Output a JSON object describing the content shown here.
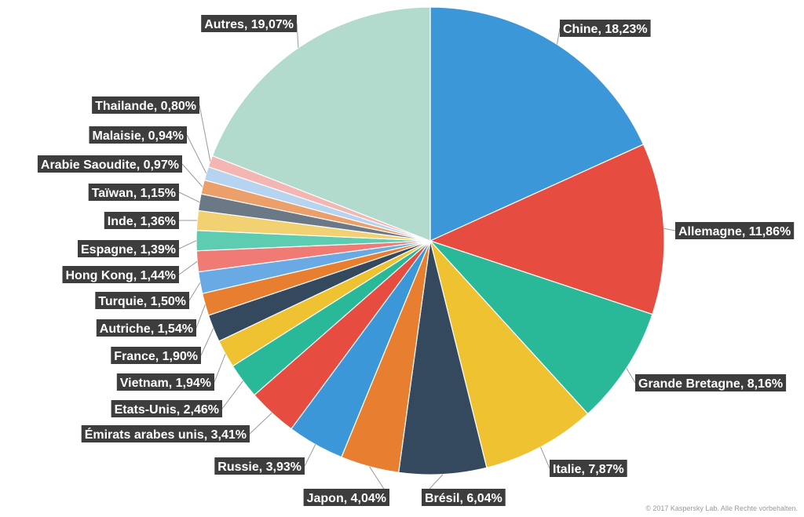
{
  "chart_data": {
    "type": "pie",
    "title": "",
    "start_angle_deg": 0,
    "direction": "clockwise",
    "slices": [
      {
        "label": "Chine, 18,23%",
        "value": 18.23,
        "color": "#3b97d8"
      },
      {
        "label": "Allemagne, 11,86%",
        "value": 11.86,
        "color": "#e64c3f"
      },
      {
        "label": "Grande Bretagne, 8,16%",
        "value": 8.16,
        "color": "#2ab998"
      },
      {
        "label": "Italie, 7,87%",
        "value": 7.87,
        "color": "#efc232"
      },
      {
        "label": "Brésil, 6,04%",
        "value": 6.04,
        "color": "#34495e"
      },
      {
        "label": "Japon, 4,04%",
        "value": 4.04,
        "color": "#e77e30"
      },
      {
        "label": "Russie, 3,93%",
        "value": 3.93,
        "color": "#3b97d8"
      },
      {
        "label": "Émirats arabes unis, 3,41%",
        "value": 3.41,
        "color": "#e64c3f"
      },
      {
        "label": "Etats-Unis, 2,46%",
        "value": 2.46,
        "color": "#2ab998"
      },
      {
        "label": "Vietnam, 1,94%",
        "value": 1.94,
        "color": "#efc232"
      },
      {
        "label": "France, 1,90%",
        "value": 1.9,
        "color": "#34495e"
      },
      {
        "label": "Autriche, 1,54%",
        "value": 1.54,
        "color": "#e77e30"
      },
      {
        "label": "Turquie, 1,50%",
        "value": 1.5,
        "color": "#6aaae4"
      },
      {
        "label": "Hong Kong, 1,44%",
        "value": 1.44,
        "color": "#ef7b74"
      },
      {
        "label": "Espagne, 1,39%",
        "value": 1.39,
        "color": "#5dccb0"
      },
      {
        "label": "Inde, 1,36%",
        "value": 1.36,
        "color": "#f2d173"
      },
      {
        "label": "Taïwan, 1,15%",
        "value": 1.15,
        "color": "#6b7885"
      },
      {
        "label": "Arabie Saoudite, 0,97%",
        "value": 0.97,
        "color": "#eba06b"
      },
      {
        "label": "Malaisie, 0,94%",
        "value": 0.94,
        "color": "#b6d3f0"
      },
      {
        "label": "Thailande, 0,80%",
        "value": 0.8,
        "color": "#f3b6b2"
      },
      {
        "label": "Autres, 19,07%",
        "value": 19.07,
        "color": "#b2dbcd"
      }
    ]
  },
  "copyright": "© 2017 Kaspersky Lab. Alle Rechte vorbehalten."
}
